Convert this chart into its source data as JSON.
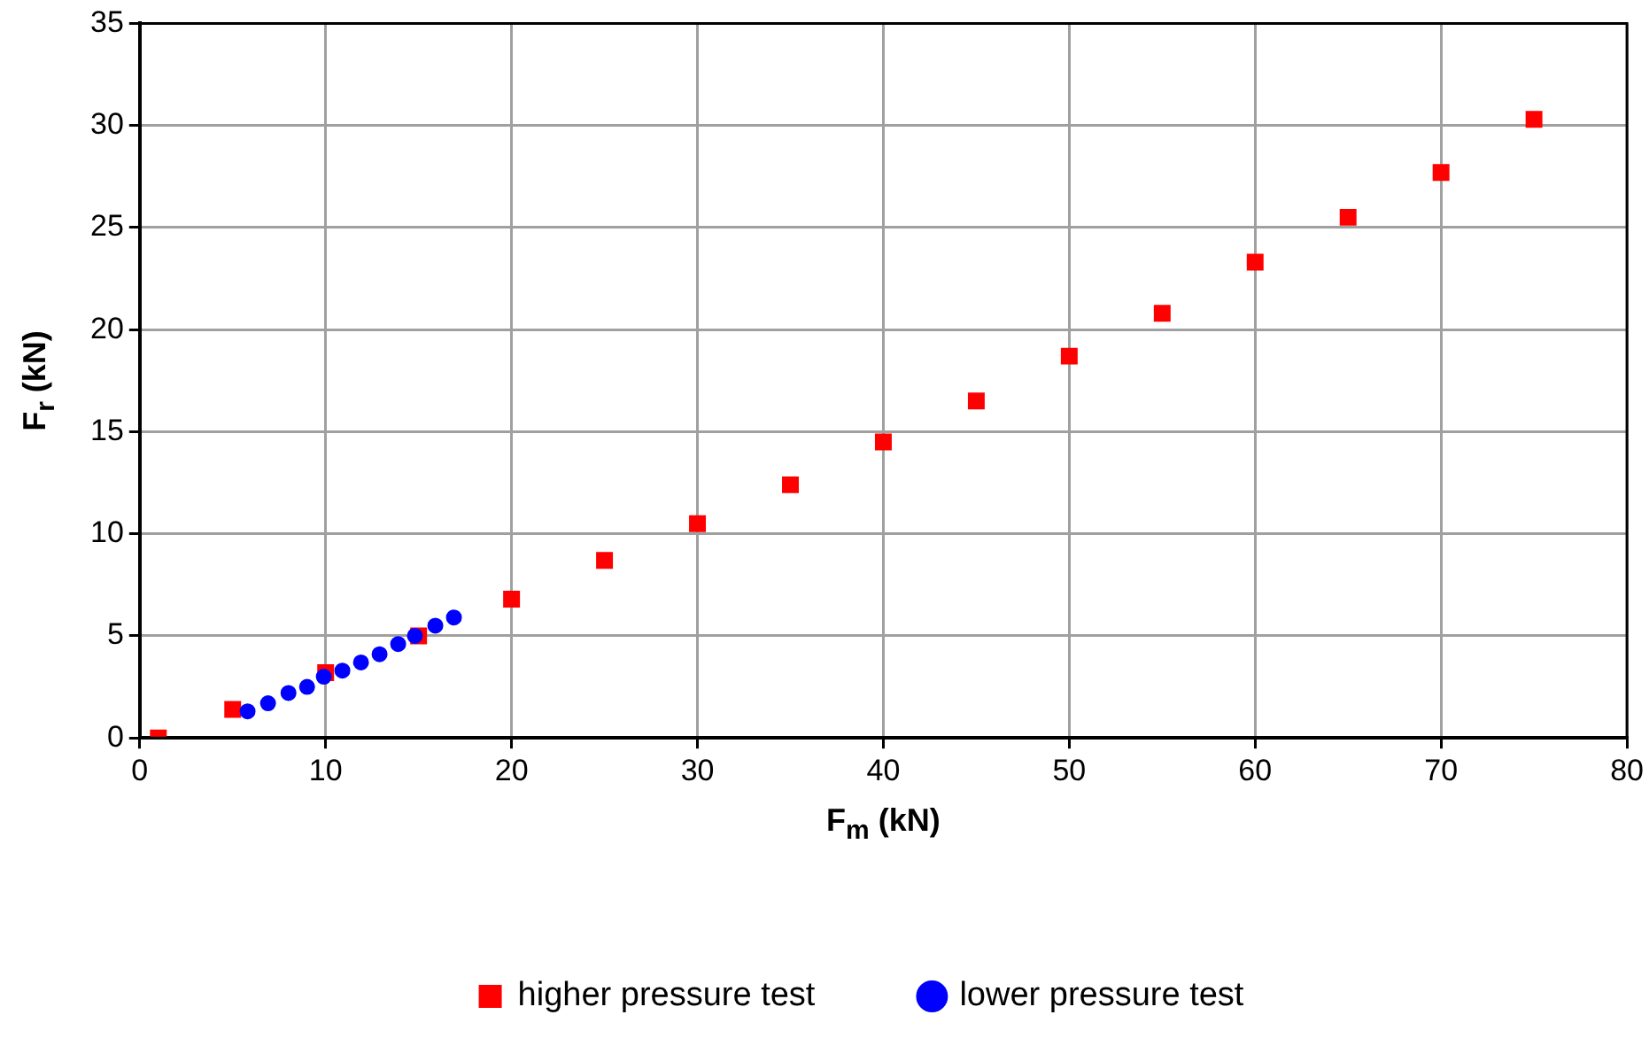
{
  "chart_data": {
    "type": "scatter",
    "xlabel": "F$_{m}$ (kN)",
    "ylabel": "F$_{r}$ (kN)",
    "xlim": [
      0,
      80
    ],
    "xticks": [
      0,
      10,
      20,
      30,
      40,
      50,
      60,
      70,
      80
    ],
    "ylim": [
      0,
      35
    ],
    "yticks": [
      0,
      5,
      10,
      15,
      20,
      25,
      30,
      35
    ],
    "grid": true,
    "legend": "bottom",
    "series": [
      {
        "name": "higher pressure test",
        "color": "#ff0000",
        "marker": "square",
        "x": [
          1,
          5,
          10,
          15,
          20,
          25,
          30,
          35,
          40,
          45,
          50,
          55,
          60,
          65,
          70,
          75
        ],
        "values": [
          0,
          1.4,
          3.2,
          5.0,
          6.8,
          8.7,
          10.5,
          12.4,
          14.5,
          16.5,
          18.7,
          20.8,
          23.3,
          25.5,
          27.7,
          30.3
        ]
      },
      {
        "name": "lower pressure test",
        "color": "#0000ff",
        "marker": "circle",
        "x": [
          5.8,
          6.9,
          8.0,
          9.0,
          9.9,
          10.9,
          11.9,
          12.9,
          13.9,
          14.8,
          15.9,
          16.9
        ],
        "values": [
          1.3,
          1.7,
          2.2,
          2.5,
          3.0,
          3.3,
          3.7,
          4.1,
          4.6,
          5.0,
          5.5,
          5.9
        ]
      }
    ]
  }
}
